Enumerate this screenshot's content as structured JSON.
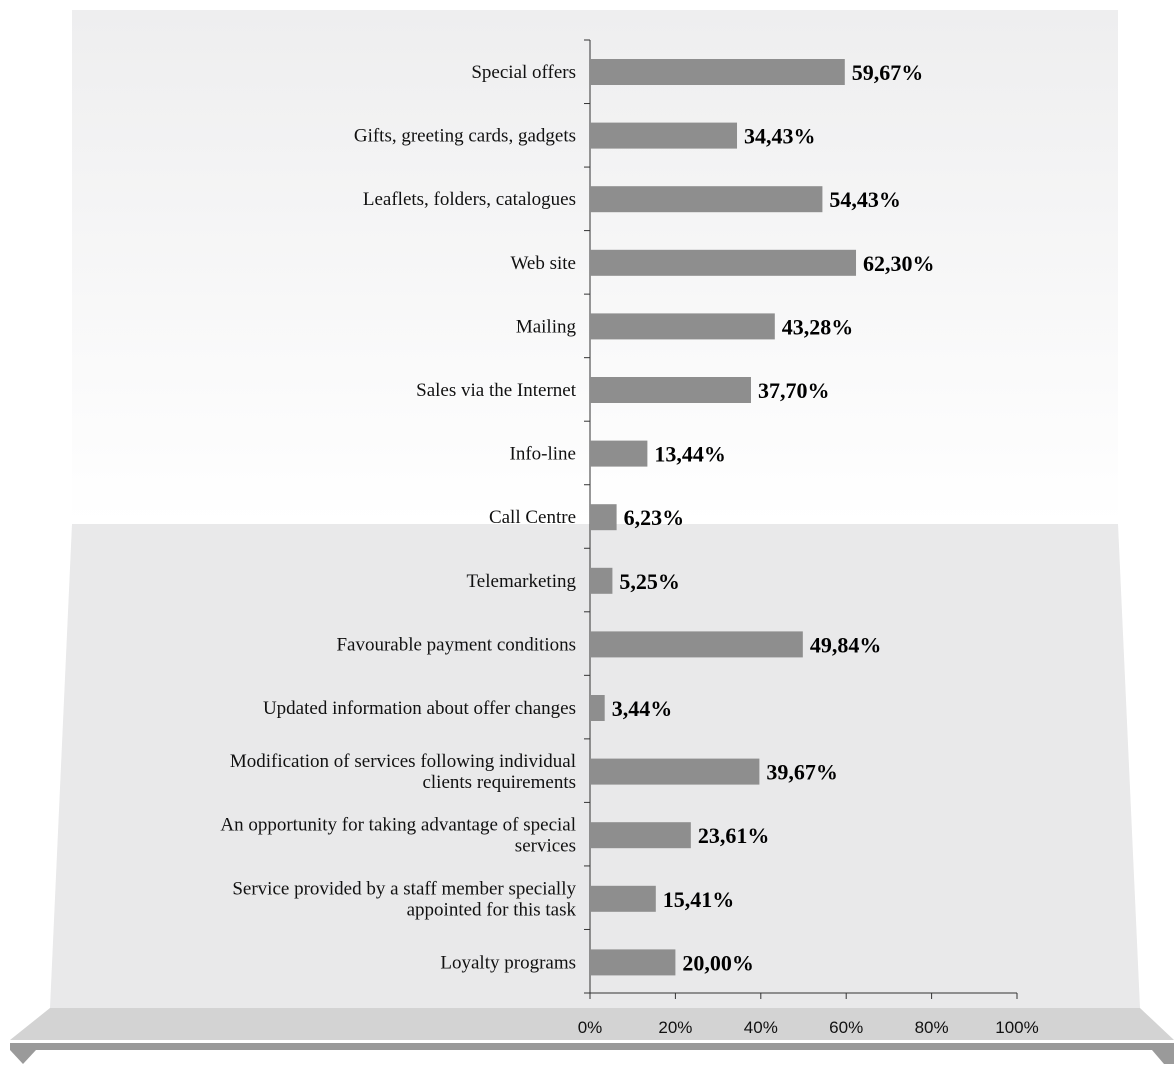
{
  "chart_data": {
    "type": "bar",
    "orientation": "horizontal",
    "categories": [
      [
        "Special offers"
      ],
      [
        "Gifts, greeting cards, gadgets"
      ],
      [
        "Leaflets, folders, catalogues"
      ],
      [
        "Web site"
      ],
      [
        "Mailing"
      ],
      [
        "Sales via the Internet"
      ],
      [
        "Info-line"
      ],
      [
        "Call Centre"
      ],
      [
        "Telemarketing"
      ],
      [
        "Favourable payment conditions"
      ],
      [
        "Updated information about offer changes"
      ],
      [
        "Modification of services following individual",
        "clients requirements"
      ],
      [
        "An opportunity for taking advantage of special",
        "services"
      ],
      [
        "Service provided by a staff member specially",
        "appointed for this task"
      ],
      [
        "Loyalty programs"
      ]
    ],
    "values": [
      59.67,
      34.43,
      54.43,
      62.3,
      43.28,
      37.7,
      13.44,
      6.23,
      5.25,
      49.84,
      3.44,
      39.67,
      23.61,
      15.41,
      20.0
    ],
    "value_labels": [
      "59,67%",
      "34,43%",
      "54,43%",
      "62,30%",
      "43,28%",
      "37,70%",
      "13,44%",
      "6,23%",
      "5,25%",
      "49,84%",
      "3,44%",
      "39,67%",
      "23,61%",
      "15,41%",
      "20,00%"
    ],
    "xlim": [
      0,
      100
    ],
    "x_ticks": [
      "0%",
      "20%",
      "40%",
      "60%",
      "80%",
      "100%"
    ],
    "x_tick_values": [
      0,
      20,
      40,
      60,
      80,
      100
    ],
    "title": "",
    "xlabel": "",
    "ylabel": "",
    "grid": false,
    "legend": "none",
    "colors": {
      "bar": "#8e8e8e",
      "panel_light": "#f7f7f7",
      "panel_dark": "#e9e9ea",
      "base": "#d3d3d3",
      "rail": "#9a9a9a",
      "axis": "#333333"
    }
  }
}
